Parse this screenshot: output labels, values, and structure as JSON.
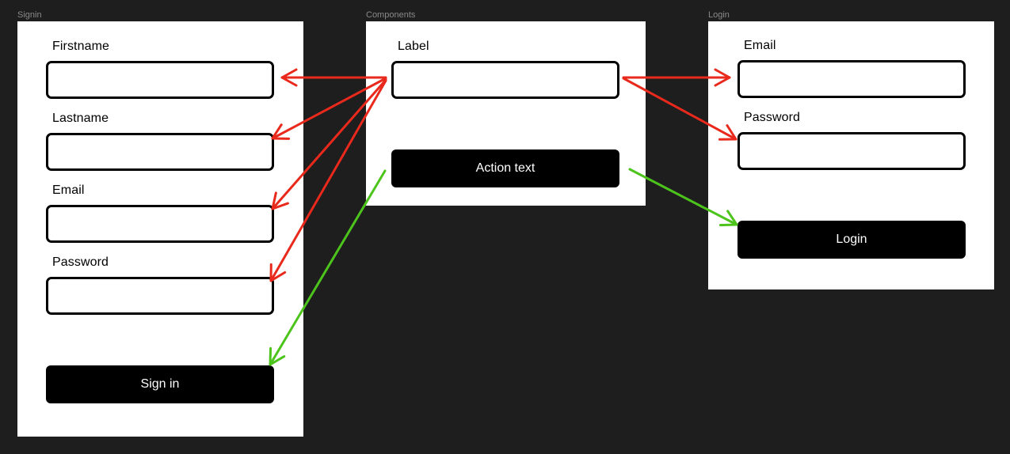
{
  "frames": {
    "signin": {
      "title": "Signin",
      "fields": [
        {
          "label": "Firstname"
        },
        {
          "label": "Lastname"
        },
        {
          "label": "Email"
        },
        {
          "label": "Password"
        }
      ],
      "button_label": "Sign in"
    },
    "components": {
      "title": "Components",
      "field_label": "Label",
      "button_label": "Action text"
    },
    "login": {
      "title": "Login",
      "fields": [
        {
          "label": "Email"
        },
        {
          "label": "Password"
        }
      ],
      "button_label": "Login"
    }
  },
  "colors": {
    "canvas": "#1e1e1e",
    "frame": "#ffffff",
    "input_link_arrow": "#e8291c",
    "button_link_arrow": "#4cc41c"
  }
}
